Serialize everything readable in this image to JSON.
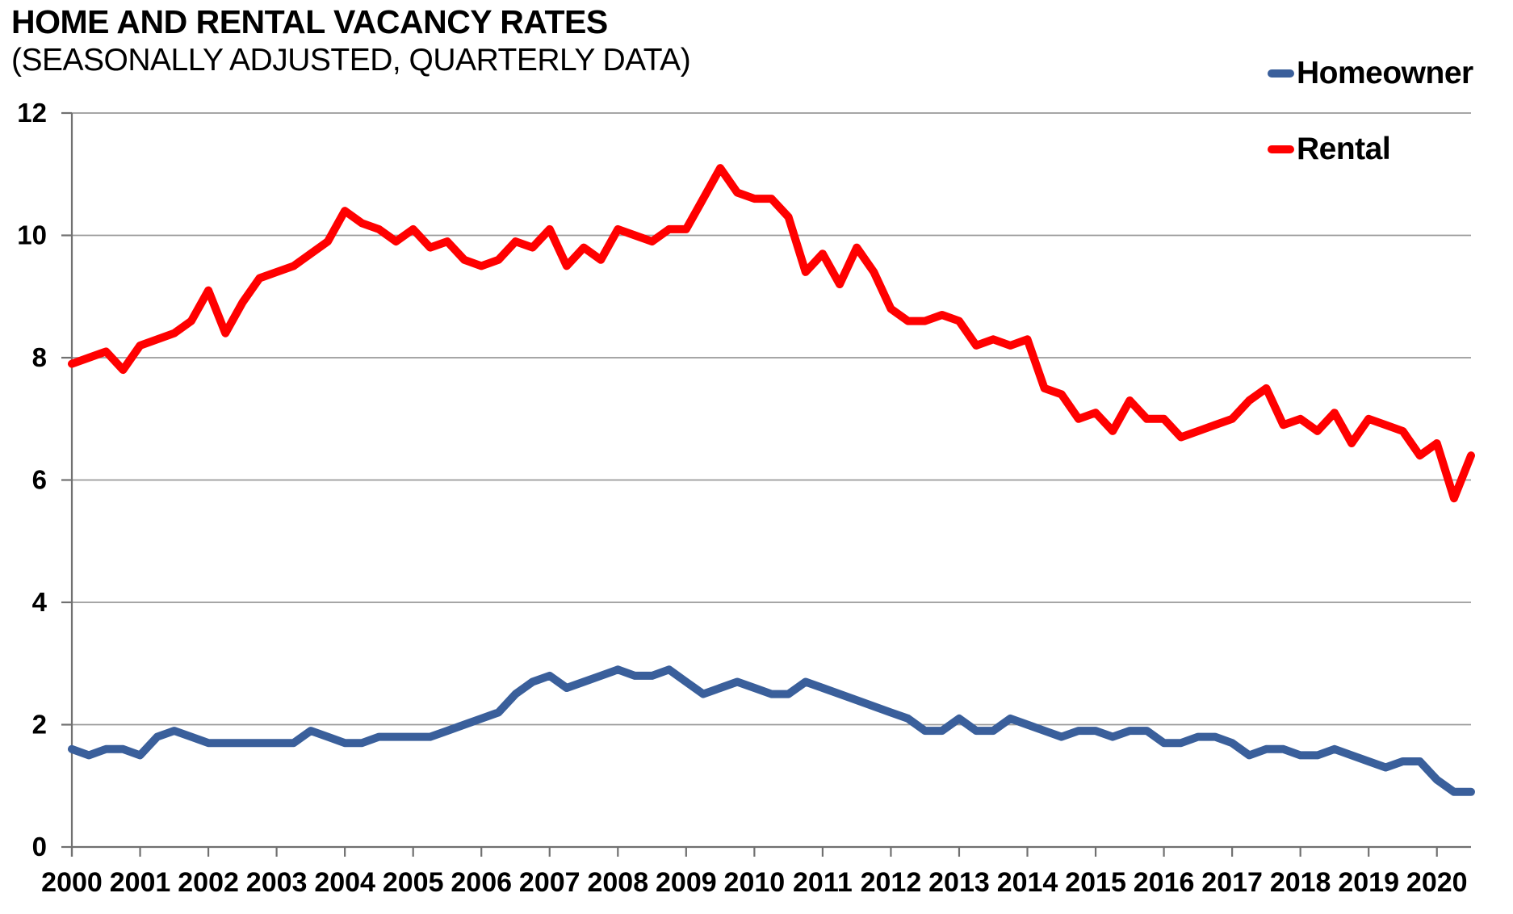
{
  "header": {
    "title": "HOME AND RENTAL VACANCY RATES",
    "subtitle": "(SEASONALLY ADJUSTED, QUARTERLY DATA)"
  },
  "legend": {
    "items": [
      {
        "label": "Homeowner",
        "color": "#3a5f9b"
      },
      {
        "label": "Rental",
        "color": "#ff0000"
      }
    ]
  },
  "colors": {
    "homeowner_line": "#3a5f9b",
    "rental_line": "#ff0000",
    "gridline": "#9a9a9a",
    "axis": "#707070",
    "text": "#000000",
    "background": "#ffffff"
  },
  "chart_data": {
    "type": "line",
    "title": "HOME AND RENTAL VACANCY RATES",
    "subtitle": "(SEASONALLY ADJUSTED, QUARTERLY DATA)",
    "x_description": "Quarterly data from 2000 Q1 through 2020 Q3",
    "x_tick_labels": [
      "2000",
      "2001",
      "2002",
      "2003",
      "2004",
      "2005",
      "2006",
      "2007",
      "2008",
      "2009",
      "2010",
      "2011",
      "2012",
      "2013",
      "2014",
      "2015",
      "2016",
      "2017",
      "2018",
      "2019",
      "2020"
    ],
    "y_ticks": [
      0,
      2,
      4,
      6,
      8,
      10,
      12
    ],
    "ylim": [
      0,
      12
    ],
    "ylabel": "",
    "xlabel": "",
    "grid": true,
    "legend_position": "top-right",
    "series": [
      {
        "name": "Homeowner",
        "color": "#3a5f9b",
        "values": [
          1.6,
          1.5,
          1.6,
          1.6,
          1.5,
          1.8,
          1.9,
          1.8,
          1.7,
          1.7,
          1.7,
          1.7,
          1.7,
          1.7,
          1.9,
          1.8,
          1.7,
          1.7,
          1.8,
          1.8,
          1.8,
          1.8,
          1.9,
          2.0,
          2.1,
          2.2,
          2.5,
          2.7,
          2.8,
          2.6,
          2.7,
          2.8,
          2.9,
          2.8,
          2.8,
          2.9,
          2.7,
          2.5,
          2.6,
          2.7,
          2.6,
          2.5,
          2.5,
          2.7,
          2.6,
          2.5,
          2.4,
          2.3,
          2.2,
          2.1,
          1.9,
          1.9,
          2.1,
          1.9,
          1.9,
          2.1,
          2.0,
          1.9,
          1.8,
          1.9,
          1.9,
          1.8,
          1.9,
          1.9,
          1.7,
          1.7,
          1.8,
          1.8,
          1.7,
          1.5,
          1.6,
          1.6,
          1.5,
          1.5,
          1.6,
          1.5,
          1.4,
          1.3,
          1.4,
          1.4,
          1.1,
          0.9,
          0.9
        ]
      },
      {
        "name": "Rental",
        "color": "#ff0000",
        "values": [
          7.9,
          8.0,
          8.1,
          7.8,
          8.2,
          8.3,
          8.4,
          8.6,
          9.1,
          8.4,
          8.9,
          9.3,
          9.4,
          9.5,
          9.7,
          9.9,
          10.4,
          10.2,
          10.1,
          9.9,
          10.1,
          9.8,
          9.9,
          9.6,
          9.5,
          9.6,
          9.9,
          9.8,
          10.1,
          9.5,
          9.8,
          9.6,
          10.1,
          10.0,
          9.9,
          10.1,
          10.1,
          10.6,
          11.1,
          10.7,
          10.6,
          10.6,
          10.3,
          9.4,
          9.7,
          9.2,
          9.8,
          9.4,
          8.8,
          8.6,
          8.6,
          8.7,
          8.6,
          8.2,
          8.3,
          8.2,
          8.3,
          7.5,
          7.4,
          7.0,
          7.1,
          6.8,
          7.3,
          7.0,
          7.0,
          6.7,
          6.8,
          6.9,
          7.0,
          7.3,
          7.5,
          6.9,
          7.0,
          6.8,
          7.1,
          6.6,
          7.0,
          6.9,
          6.8,
          6.4,
          6.6,
          5.7,
          6.4
        ]
      }
    ]
  }
}
